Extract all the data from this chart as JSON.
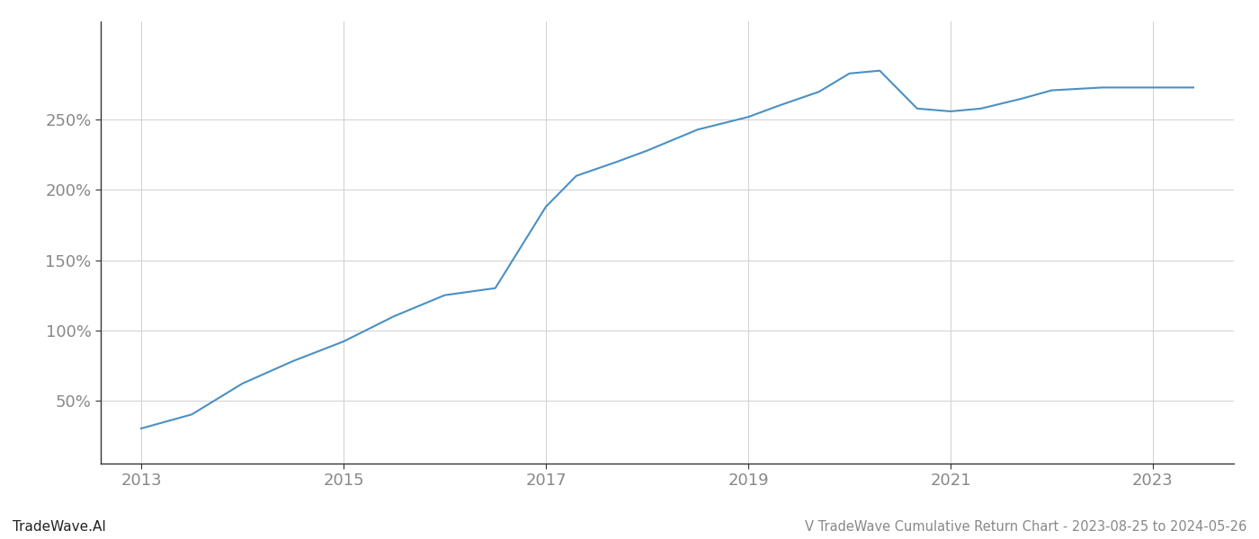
{
  "title": "V TradeWave Cumulative Return Chart - 2023-08-25 to 2024-05-26",
  "watermark": "TradeWave.AI",
  "line_color": "#4a90c4",
  "background_color": "#ffffff",
  "grid_color": "#d0d0d0",
  "x_years": [
    2013.0,
    2013.5,
    2014.0,
    2014.5,
    2015.0,
    2015.5,
    2016.0,
    2016.5,
    2017.0,
    2017.3,
    2017.7,
    2018.0,
    2018.5,
    2019.0,
    2019.3,
    2019.7,
    2020.0,
    2020.3,
    2020.67,
    2021.0,
    2021.3,
    2021.7,
    2022.0,
    2022.5,
    2023.0,
    2023.4
  ],
  "y_values": [
    30,
    40,
    62,
    78,
    92,
    110,
    125,
    130,
    188,
    210,
    220,
    228,
    243,
    252,
    260,
    270,
    283,
    285,
    258,
    256,
    258,
    265,
    271,
    273,
    273,
    273
  ],
  "yticks": [
    50,
    100,
    150,
    200,
    250
  ],
  "ylim": [
    5,
    320
  ],
  "xlim": [
    2012.6,
    2023.8
  ],
  "xtick_years": [
    2013,
    2015,
    2017,
    2019,
    2021,
    2023
  ],
  "label_color": "#888888",
  "title_color": "#666666",
  "watermark_color": "#222222",
  "axis_color": "#333333",
  "spine_color": "#333333"
}
